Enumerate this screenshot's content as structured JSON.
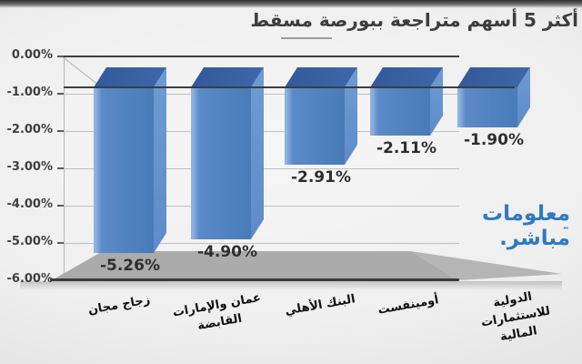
{
  "title": "أكثر 5 أسهم متراجعة ببورصة مسقط",
  "watermark": {
    "line1": "معلومات",
    "line2": "مباشر.",
    "tilde": "˜",
    "color": "#2e7ac1"
  },
  "chart_data": {
    "type": "bar",
    "style": "3d-column",
    "title": "أكثر 5 أسهم متراجعة ببورصة مسقط",
    "categories": [
      "زجاج مجان",
      "عمان والإمارات القابضة",
      "البنك الأهلي",
      "أومينفست",
      "الدولية للاستثمارات المالية"
    ],
    "values": [
      -5.26,
      -4.9,
      -2.91,
      -2.11,
      -1.9
    ],
    "value_labels": [
      "-5.26%",
      "-4.90%",
      "-2.91%",
      "-2.11%",
      "-1.90%"
    ],
    "ylim": [
      -6,
      0
    ],
    "yticks": [
      "0.00%",
      "-1.00%",
      "-2.00%",
      "-3.00%",
      "-4.00%",
      "-5.00%",
      "-6.00%"
    ],
    "bar_color": "#4e81bd",
    "grid": true,
    "legend": false
  }
}
